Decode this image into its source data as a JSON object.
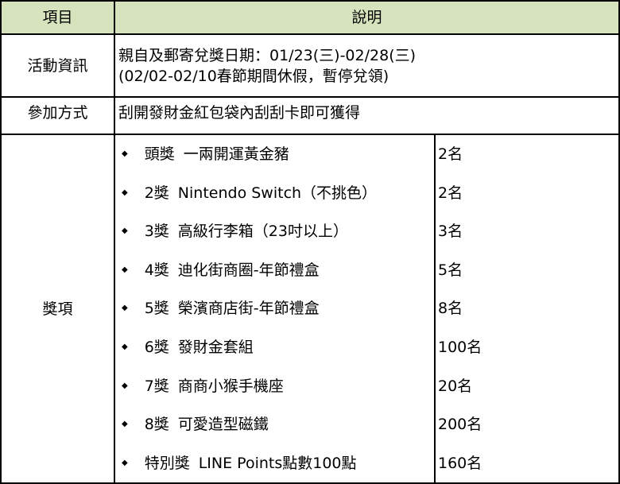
{
  "colors": {
    "header_bg": "#d6e3bc",
    "border": "#000000",
    "text": "#000000"
  },
  "table": {
    "header": {
      "col_item": "項目",
      "col_desc": "說明"
    },
    "rows": [
      {
        "label": "活動資訊",
        "desc_line1": "親自及郵寄兌獎日期：01/23(三)-02/28(三)",
        "desc_line2": "(02/02-02/10春節期間休假，暫停兌領)"
      },
      {
        "label": "參加方式",
        "desc": "刮開發財金紅包袋內刮刮卡即可獲得"
      }
    ],
    "prizes": {
      "label": "獎項",
      "bullet": "◆",
      "items": [
        {
          "tier": "頭獎",
          "name": "一兩開運黃金豬",
          "count": "2名"
        },
        {
          "tier": "2獎",
          "name": "Nintendo Switch（不挑色）",
          "count": "2名"
        },
        {
          "tier": "3獎",
          "name": "高級行李箱（23吋以上）",
          "count": "3名"
        },
        {
          "tier": "4獎",
          "name": "迪化街商圈-年節禮盒",
          "count": "5名"
        },
        {
          "tier": "5獎",
          "name": "榮濱商店街-年節禮盒",
          "count": "8名"
        },
        {
          "tier": "6獎",
          "name": "發財金套組",
          "count": "100名"
        },
        {
          "tier": "7獎",
          "name": "商商小猴手機座",
          "count": "20名"
        },
        {
          "tier": "8獎",
          "name": "可愛造型磁鐵",
          "count": "200名"
        },
        {
          "tier": "特別獎",
          "name": "LINE Points點數100點",
          "count": "160名"
        }
      ]
    }
  }
}
